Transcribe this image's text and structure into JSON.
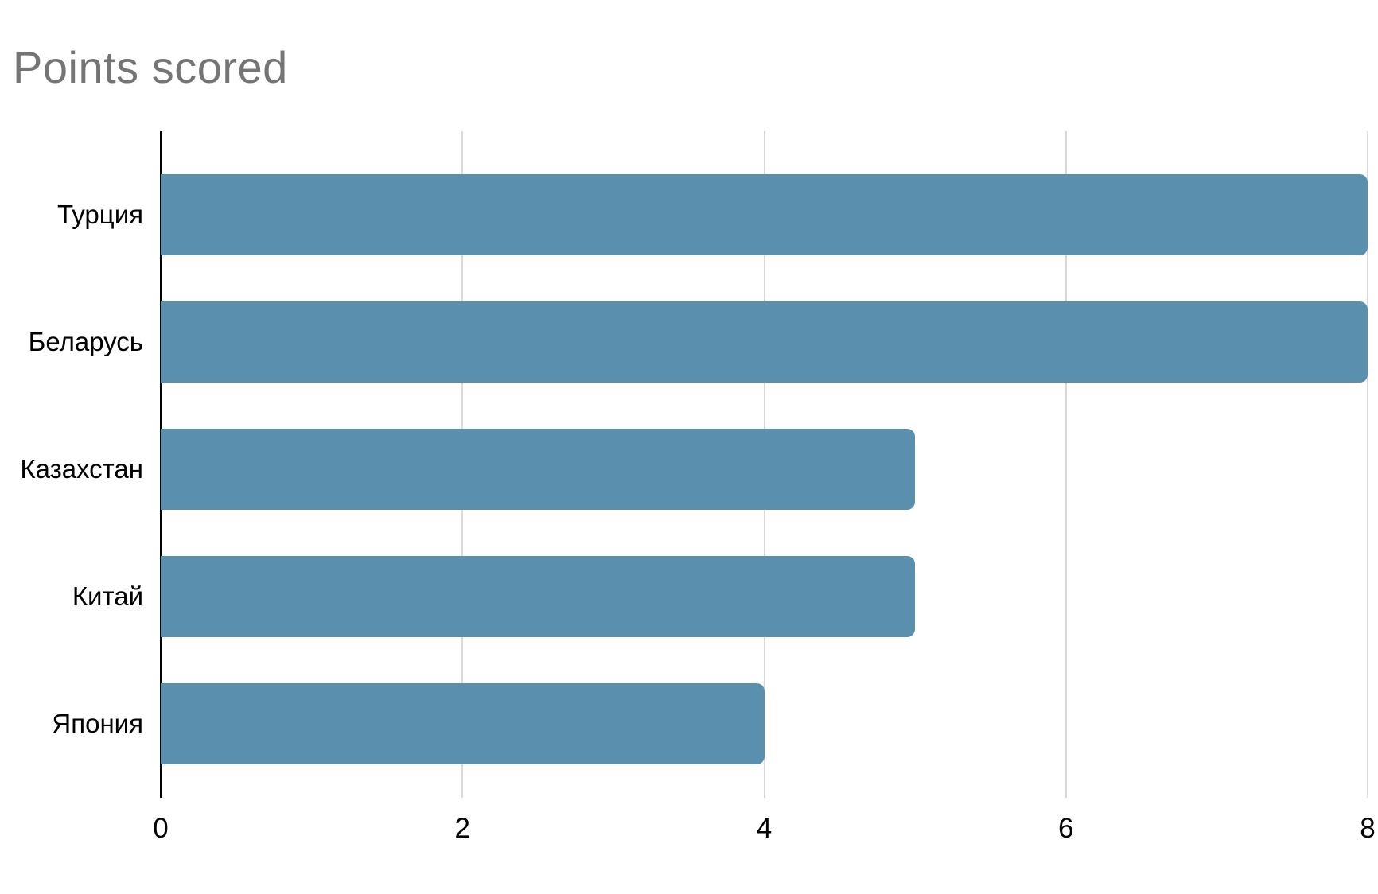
{
  "title": "Points scored",
  "chart_data": {
    "type": "bar",
    "orientation": "horizontal",
    "title": "Points scored",
    "categories": [
      "Турция",
      "Беларусь",
      "Казахстан",
      "Китай",
      "Япония"
    ],
    "values": [
      8,
      8,
      5,
      5,
      4
    ],
    "xlabel": "",
    "ylabel": "",
    "xlim": [
      0,
      8
    ],
    "xticks": [
      0,
      2,
      4,
      6,
      8
    ],
    "grid": true,
    "legend_position": "none",
    "colors": {
      "bar": "#5a90ae",
      "title": "#757575",
      "gridline": "#d9d9d9",
      "axis": "#000000",
      "tick_label": "#000000",
      "category_label": "#000000"
    }
  }
}
